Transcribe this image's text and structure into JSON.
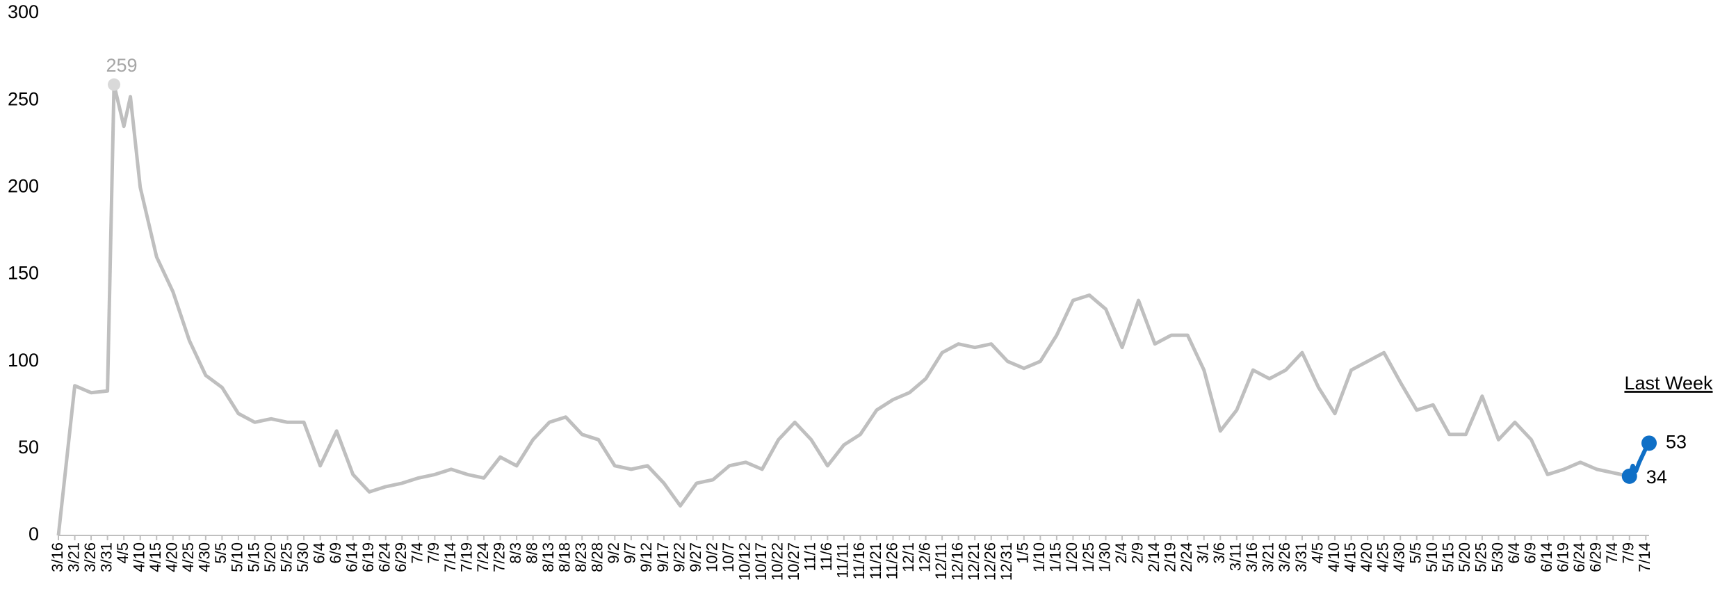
{
  "chart_data": {
    "type": "line",
    "annotation": "Last Week",
    "xlim": [
      0,
      486
    ],
    "ylim": [
      0,
      300
    ],
    "yticks": [
      0,
      50,
      100,
      150,
      200,
      250,
      300
    ],
    "grid": false,
    "xticks": [
      {
        "value": 0,
        "label": "3/16"
      },
      {
        "value": 5,
        "label": "3/21"
      },
      {
        "value": 10,
        "label": "3/26"
      },
      {
        "value": 15,
        "label": "3/31"
      },
      {
        "value": 20,
        "label": "4/5"
      },
      {
        "value": 25,
        "label": "4/10"
      },
      {
        "value": 30,
        "label": "4/15"
      },
      {
        "value": 35,
        "label": "4/20"
      },
      {
        "value": 40,
        "label": "4/25"
      },
      {
        "value": 45,
        "label": "4/30"
      },
      {
        "value": 50,
        "label": "5/5"
      },
      {
        "value": 55,
        "label": "5/10"
      },
      {
        "value": 60,
        "label": "5/15"
      },
      {
        "value": 65,
        "label": "5/20"
      },
      {
        "value": 70,
        "label": "5/25"
      },
      {
        "value": 75,
        "label": "5/30"
      },
      {
        "value": 80,
        "label": "6/4"
      },
      {
        "value": 85,
        "label": "6/9"
      },
      {
        "value": 90,
        "label": "6/14"
      },
      {
        "value": 95,
        "label": "6/19"
      },
      {
        "value": 100,
        "label": "6/24"
      },
      {
        "value": 105,
        "label": "6/29"
      },
      {
        "value": 110,
        "label": "7/4"
      },
      {
        "value": 115,
        "label": "7/9"
      },
      {
        "value": 120,
        "label": "7/14"
      },
      {
        "value": 125,
        "label": "7/19"
      },
      {
        "value": 130,
        "label": "7/24"
      },
      {
        "value": 135,
        "label": "7/29"
      },
      {
        "value": 140,
        "label": "8/3"
      },
      {
        "value": 145,
        "label": "8/8"
      },
      {
        "value": 150,
        "label": "8/13"
      },
      {
        "value": 155,
        "label": "8/18"
      },
      {
        "value": 160,
        "label": "8/23"
      },
      {
        "value": 165,
        "label": "8/28"
      },
      {
        "value": 170,
        "label": "9/2"
      },
      {
        "value": 175,
        "label": "9/7"
      },
      {
        "value": 180,
        "label": "9/12"
      },
      {
        "value": 185,
        "label": "9/17"
      },
      {
        "value": 190,
        "label": "9/22"
      },
      {
        "value": 195,
        "label": "9/27"
      },
      {
        "value": 200,
        "label": "10/2"
      },
      {
        "value": 205,
        "label": "10/7"
      },
      {
        "value": 210,
        "label": "10/12"
      },
      {
        "value": 215,
        "label": "10/17"
      },
      {
        "value": 220,
        "label": "10/22"
      },
      {
        "value": 225,
        "label": "10/27"
      },
      {
        "value": 230,
        "label": "11/1"
      },
      {
        "value": 235,
        "label": "11/6"
      },
      {
        "value": 240,
        "label": "11/11"
      },
      {
        "value": 245,
        "label": "11/16"
      },
      {
        "value": 250,
        "label": "11/21"
      },
      {
        "value": 255,
        "label": "11/26"
      },
      {
        "value": 260,
        "label": "12/1"
      },
      {
        "value": 265,
        "label": "12/6"
      },
      {
        "value": 270,
        "label": "12/11"
      },
      {
        "value": 275,
        "label": "12/16"
      },
      {
        "value": 280,
        "label": "12/21"
      },
      {
        "value": 285,
        "label": "12/26"
      },
      {
        "value": 290,
        "label": "12/31"
      },
      {
        "value": 295,
        "label": "1/5"
      },
      {
        "value": 300,
        "label": "1/10"
      },
      {
        "value": 305,
        "label": "1/15"
      },
      {
        "value": 310,
        "label": "1/20"
      },
      {
        "value": 315,
        "label": "1/25"
      },
      {
        "value": 320,
        "label": "1/30"
      },
      {
        "value": 325,
        "label": "2/4"
      },
      {
        "value": 330,
        "label": "2/9"
      },
      {
        "value": 335,
        "label": "2/14"
      },
      {
        "value": 340,
        "label": "2/19"
      },
      {
        "value": 345,
        "label": "2/24"
      },
      {
        "value": 350,
        "label": "3/1"
      },
      {
        "value": 355,
        "label": "3/6"
      },
      {
        "value": 360,
        "label": "3/11"
      },
      {
        "value": 365,
        "label": "3/16"
      },
      {
        "value": 370,
        "label": "3/21"
      },
      {
        "value": 375,
        "label": "3/26"
      },
      {
        "value": 380,
        "label": "3/31"
      },
      {
        "value": 385,
        "label": "4/5"
      },
      {
        "value": 390,
        "label": "4/10"
      },
      {
        "value": 395,
        "label": "4/15"
      },
      {
        "value": 400,
        "label": "4/20"
      },
      {
        "value": 405,
        "label": "4/25"
      },
      {
        "value": 410,
        "label": "4/30"
      },
      {
        "value": 415,
        "label": "5/5"
      },
      {
        "value": 420,
        "label": "5/10"
      },
      {
        "value": 425,
        "label": "5/15"
      },
      {
        "value": 430,
        "label": "5/20"
      },
      {
        "value": 435,
        "label": "5/25"
      },
      {
        "value": 440,
        "label": "5/30"
      },
      {
        "value": 445,
        "label": "6/4"
      },
      {
        "value": 450,
        "label": "6/9"
      },
      {
        "value": 455,
        "label": "6/14"
      },
      {
        "value": 460,
        "label": "6/19"
      },
      {
        "value": 465,
        "label": "6/24"
      },
      {
        "value": 470,
        "label": "6/29"
      },
      {
        "value": 475,
        "label": "7/4"
      },
      {
        "value": 480,
        "label": "7/9"
      },
      {
        "value": 485,
        "label": "7/14"
      }
    ],
    "series": [
      {
        "color": "#bfbfbf",
        "x": [
          0,
          5,
          10,
          15,
          17,
          20,
          22,
          25,
          30,
          35,
          40,
          45,
          50,
          55,
          60,
          65,
          70,
          75,
          80,
          85,
          90,
          95,
          100,
          105,
          110,
          115,
          120,
          125,
          130,
          135,
          140,
          145,
          150,
          155,
          160,
          165,
          170,
          175,
          180,
          185,
          190,
          195,
          200,
          205,
          210,
          215,
          220,
          225,
          230,
          235,
          240,
          245,
          250,
          255,
          260,
          265,
          270,
          275,
          280,
          285,
          290,
          295,
          300,
          305,
          310,
          315,
          320,
          325,
          330,
          335,
          340,
          345,
          350,
          355,
          360,
          365,
          370,
          375,
          380,
          385,
          390,
          395,
          400,
          405,
          410,
          415,
          420,
          425,
          430,
          435,
          440,
          445,
          450,
          455,
          460,
          465,
          470,
          475,
          480
        ],
        "values": [
          0,
          86,
          82,
          83,
          259,
          235,
          252,
          200,
          160,
          140,
          112,
          92,
          85,
          70,
          65,
          67,
          65,
          65,
          40,
          60,
          35,
          25,
          28,
          30,
          33,
          35,
          38,
          35,
          33,
          45,
          40,
          55,
          65,
          68,
          58,
          55,
          40,
          38,
          40,
          30,
          17,
          30,
          32,
          40,
          42,
          38,
          55,
          65,
          55,
          40,
          52,
          58,
          72,
          78,
          82,
          90,
          105,
          110,
          108,
          110,
          100,
          96,
          100,
          115,
          135,
          138,
          130,
          108,
          135,
          110,
          115,
          115,
          95,
          60,
          72,
          95,
          90,
          95,
          105,
          85,
          70,
          95,
          100,
          105,
          88,
          72,
          75,
          58,
          58,
          80,
          55,
          65,
          55,
          35,
          38,
          42,
          38,
          36,
          34
        ]
      },
      {
        "color": "#0f6fc6",
        "x": [
          480,
          481,
          482,
          483,
          484,
          485,
          486
        ],
        "values": [
          34,
          40,
          37,
          42,
          46,
          50,
          53
        ]
      }
    ]
  }
}
